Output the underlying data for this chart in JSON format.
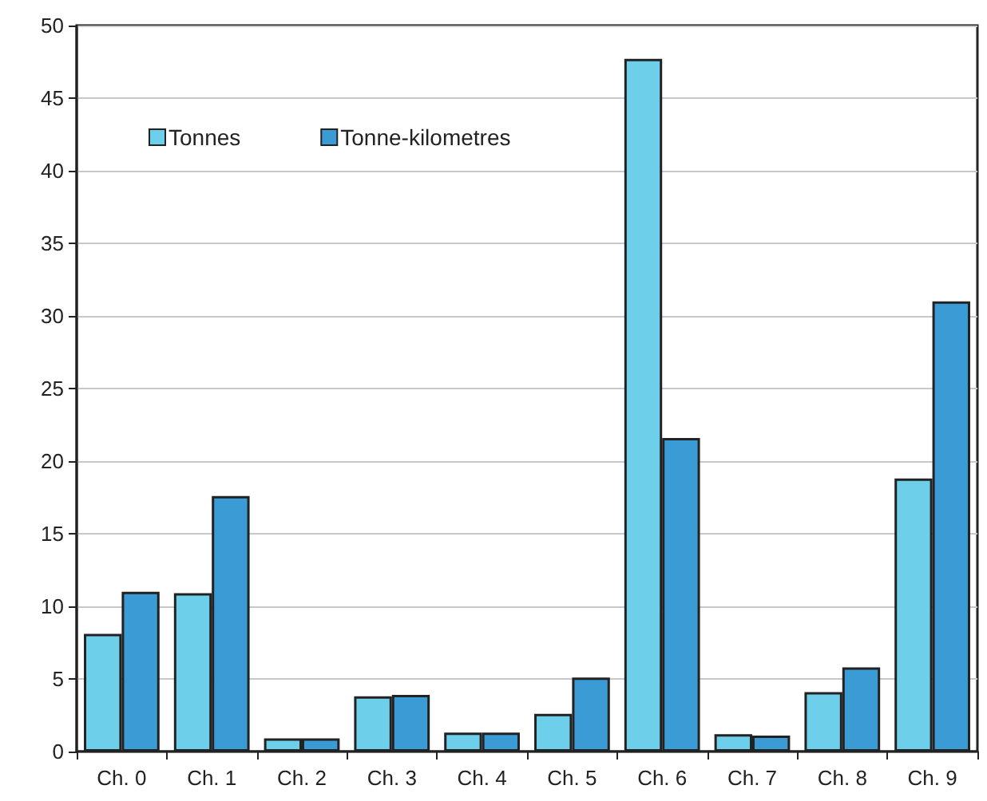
{
  "chart_data": {
    "type": "bar",
    "categories": [
      "Ch. 0",
      "Ch. 1",
      "Ch. 2",
      "Ch. 3",
      "Ch. 4",
      "Ch. 5",
      "Ch. 6",
      "Ch. 7",
      "Ch. 8",
      "Ch. 9"
    ],
    "series": [
      {
        "name": "Tonnes",
        "color": "#6ecfea",
        "values": [
          8.1,
          10.9,
          0.9,
          3.8,
          1.3,
          2.6,
          47.7,
          1.2,
          4.1,
          18.8
        ]
      },
      {
        "name": "Tonne-kilometres",
        "color": "#3a9bd5",
        "values": [
          11.0,
          17.6,
          0.9,
          3.9,
          1.3,
          5.1,
          21.6,
          1.1,
          5.8,
          31.0
        ]
      }
    ],
    "ylim": [
      0,
      50
    ],
    "yticks": [
      0,
      5,
      10,
      15,
      20,
      25,
      30,
      35,
      40,
      45,
      50
    ],
    "grid": "y",
    "legend": "top left"
  }
}
